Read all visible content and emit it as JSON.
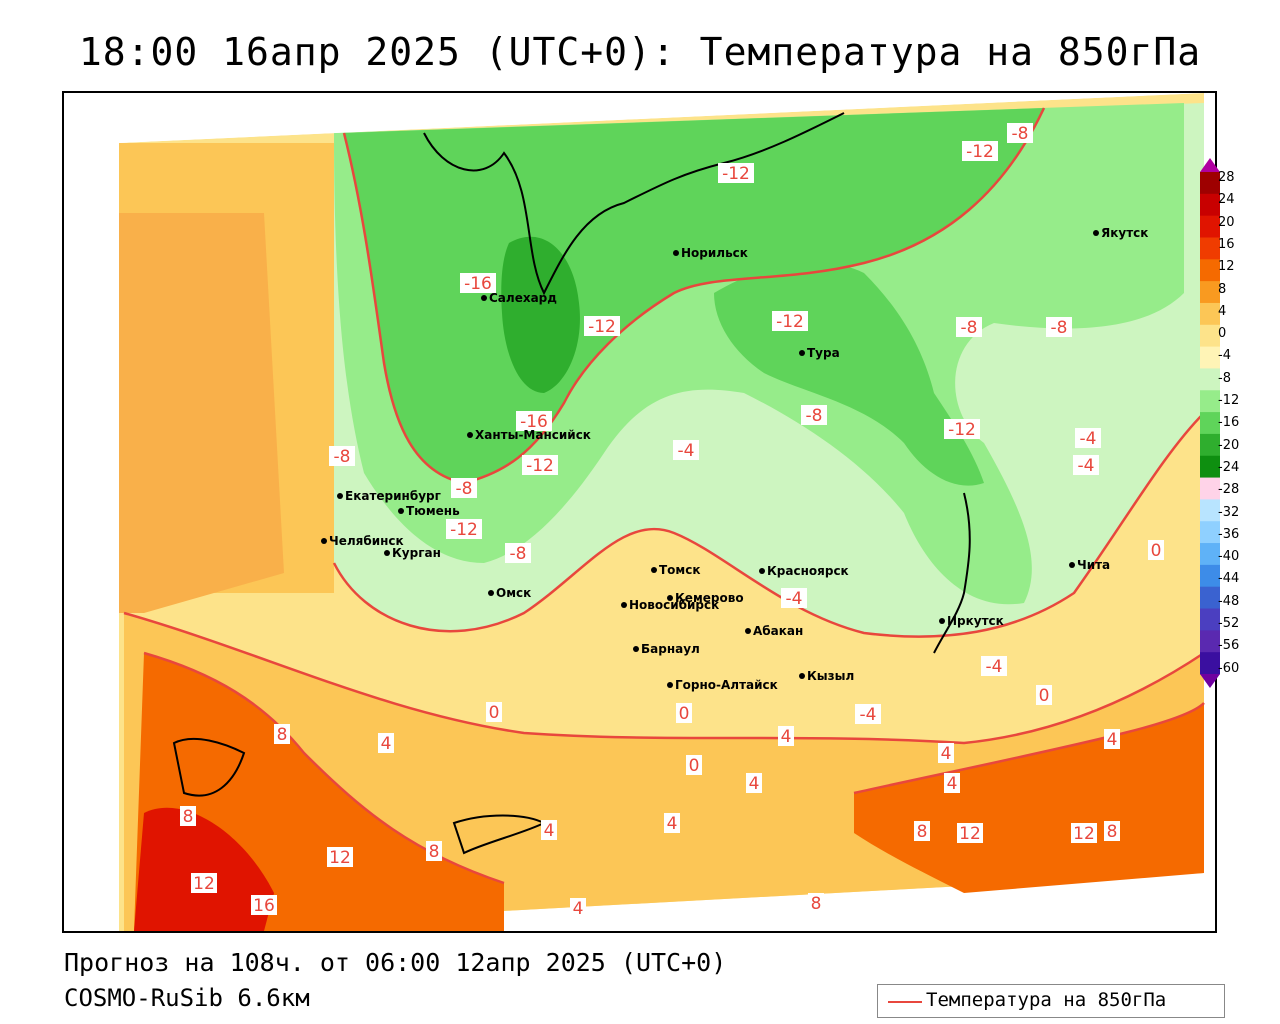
{
  "title": "18:00 16апр 2025 (UTC+0): Температура на 850гПа",
  "footer": {
    "forecast": "Прогноз на 108ч. от 06:00 12апр 2025 (UTC+0)",
    "model": "COSMO-RuSib 6.6км"
  },
  "legend": {
    "label": "Температура на 850гПа",
    "line_color": "#e8473d"
  },
  "scale": {
    "labels": [
      "28",
      "24",
      "20",
      "16",
      "12",
      "8",
      "4",
      "0",
      "-4",
      "-8",
      "-12",
      "-16",
      "-20",
      "-24",
      "-28",
      "-32",
      "-36",
      "-40",
      "-44",
      "-48",
      "-52",
      "-56",
      "-60"
    ],
    "colors": [
      "#9e0000",
      "#c80000",
      "#e01400",
      "#f03c00",
      "#f56a00",
      "#f99a20",
      "#fcc656",
      "#fde38a",
      "#fff4b6",
      "#cdf5c0",
      "#96ec8a",
      "#5fd45a",
      "#2fae2e",
      "#0e8f10",
      "#ffd3e8",
      "#b8e4ff",
      "#8fd0ff",
      "#5fb2f7",
      "#3d8ce8",
      "#3a62d0",
      "#4b3fc0",
      "#5a29b0",
      "#3a0fa0"
    ]
  },
  "cities": [
    {
      "name": "Салехард"
    },
    {
      "name": "Норильск"
    },
    {
      "name": "Якутск"
    },
    {
      "name": "Тура"
    },
    {
      "name": "Ханты-Мансийск"
    },
    {
      "name": "Екатеринбург"
    },
    {
      "name": "Тюмень"
    },
    {
      "name": "Челябинск"
    },
    {
      "name": "Курган"
    },
    {
      "name": "Омск"
    },
    {
      "name": "Томск"
    },
    {
      "name": "Красноярск"
    },
    {
      "name": "Новосибирск"
    },
    {
      "name": "Кемерово"
    },
    {
      "name": "Абакан"
    },
    {
      "name": "Барнаул"
    },
    {
      "name": "Горно-Алтайск"
    },
    {
      "name": "Кызыл"
    },
    {
      "name": "Иркутск"
    },
    {
      "name": "Чита"
    }
  ],
  "contour_labels": [
    "-12",
    "-8",
    "-12",
    "-12",
    "-16",
    "-12",
    "-12",
    "-8",
    "-8",
    "-16",
    "-8",
    "-4",
    "-12",
    "-4",
    "-4",
    "-8",
    "-8",
    "-12",
    "-8",
    "0",
    "-4",
    "-4",
    "0",
    "0",
    "-4",
    "0",
    "0",
    "4",
    "4",
    "4",
    "8",
    "8",
    "8",
    "8",
    "12",
    "12",
    "16",
    "4",
    "4",
    "4",
    "4",
    "4",
    "4",
    "8",
    "12",
    "12",
    "8"
  ]
}
